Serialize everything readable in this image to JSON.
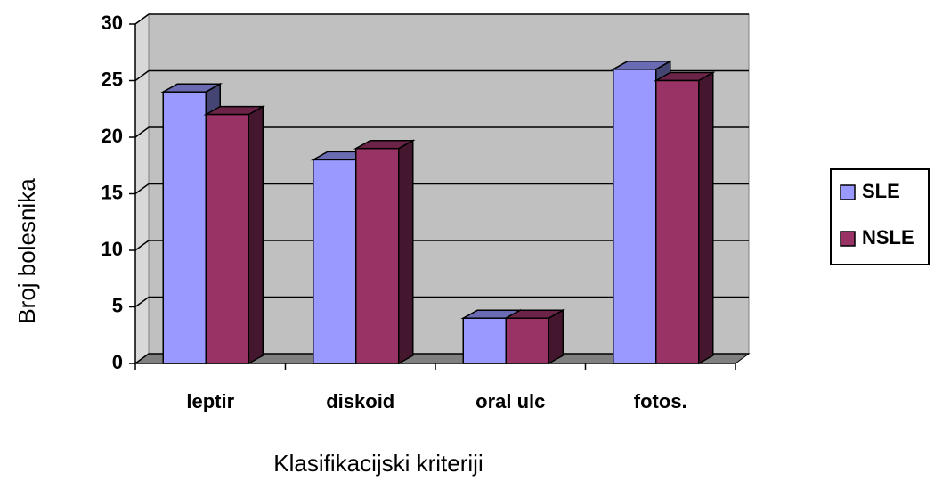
{
  "chart_data": {
    "type": "bar3d",
    "x_label": "Klasifikacijski kriteriji",
    "y_label": "Broj bolesnika",
    "categories": [
      "leptir",
      "diskoid",
      "oral ulc",
      "fotos."
    ],
    "series": [
      {
        "name": "SLE",
        "color": "#9999ff",
        "values": [
          24,
          18,
          4,
          26
        ]
      },
      {
        "name": "NSLE",
        "color": "#993366",
        "values": [
          22,
          19,
          4,
          25
        ]
      }
    ],
    "ylim": [
      0,
      30
    ],
    "yticks": [
      0,
      5,
      10,
      15,
      20,
      25,
      30
    ],
    "grid": true,
    "legend": "right"
  }
}
